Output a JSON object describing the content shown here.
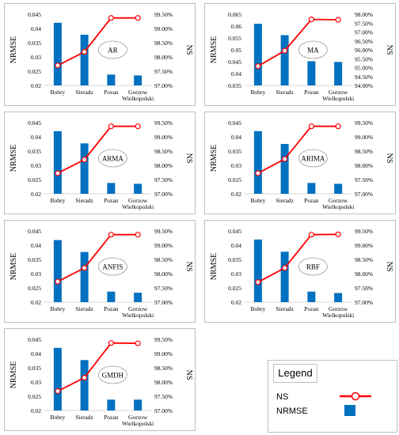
{
  "legend": {
    "title": "Legend",
    "ns_label": "NS",
    "nrmse_label": "NRMSE"
  },
  "colors": {
    "bar": "#0070C0",
    "line": "#FF0000",
    "marker_fill": "#FFFFFF"
  },
  "chart_data": [
    {
      "type": "bar",
      "model": "AR",
      "categories": [
        "Bobry",
        "Sieradz",
        "Pozan",
        "Gorzow|Wielkopolski"
      ],
      "ylabel": "NRMSE",
      "y2label": "NS",
      "ylim": [
        0.02,
        0.045
      ],
      "yticks": [
        "0.045",
        "0.04",
        "0.035",
        "0.03",
        "0.025",
        "0.02"
      ],
      "y2lim": [
        97.0,
        99.5
      ],
      "y2ticks": [
        "99.50%",
        "99.00%",
        "98.50%",
        "98.00%",
        "97.50%",
        "97.00%"
      ],
      "series": [
        {
          "name": "NRMSE",
          "kind": "bar",
          "values": [
            0.042,
            0.0378,
            0.0238,
            0.0235
          ]
        },
        {
          "name": "NS",
          "kind": "line",
          "values": [
            97.7,
            98.18,
            99.37,
            99.37
          ]
        }
      ]
    },
    {
      "type": "bar",
      "model": "MA",
      "categories": [
        "Bobry",
        "Sieradz",
        "Pozan",
        "Gorzow|Wielkopolski"
      ],
      "ylabel": "NRMSE",
      "y2label": "NS",
      "ylim": [
        0.035,
        0.065
      ],
      "yticks": [
        "0.065",
        "0.06",
        "0.055",
        "0.05",
        "0.045",
        "0.04",
        "0.035"
      ],
      "y2lim": [
        94.0,
        98.0
      ],
      "y2ticks": [
        "98.00%",
        "97.50%",
        "97.00%",
        "96.50%",
        "96.00%",
        "95.50%",
        "95.00%",
        "94.50%",
        "94.00%"
      ],
      "series": [
        {
          "name": "NRMSE",
          "kind": "bar",
          "values": [
            0.061,
            0.0562,
            0.0452,
            0.0449
          ]
        },
        {
          "name": "NS",
          "kind": "line",
          "values": [
            95.08,
            95.95,
            97.71,
            97.69
          ]
        }
      ]
    },
    {
      "type": "bar",
      "model": "ARMA",
      "categories": [
        "Bobry",
        "Sieradz",
        "Pozan",
        "Gorzow|Wielkopolski"
      ],
      "ylabel": "NRMSE",
      "y2label": "NS",
      "ylim": [
        0.02,
        0.045
      ],
      "yticks": [
        "0.045",
        "0.04",
        "0.035",
        "0.03",
        "0.025",
        "0.02"
      ],
      "y2lim": [
        97.0,
        99.5
      ],
      "y2ticks": [
        "99.50%",
        "99.00%",
        "98.50%",
        "98.00%",
        "97.50%",
        "97.00%"
      ],
      "series": [
        {
          "name": "NRMSE",
          "kind": "bar",
          "values": [
            0.042,
            0.0377,
            0.0238,
            0.0235
          ]
        },
        {
          "name": "NS",
          "kind": "line",
          "values": [
            97.72,
            98.2,
            99.37,
            99.37
          ]
        }
      ]
    },
    {
      "type": "bar",
      "model": "ARIMA",
      "categories": [
        "Bobry",
        "Sieradz",
        "Pozan",
        "Gorzow|Wielkopolski"
      ],
      "ylabel": "NRMSE",
      "y2label": "NS",
      "ylim": [
        0.02,
        0.045
      ],
      "yticks": [
        "0.045",
        "0.04",
        "0.035",
        "0.03",
        "0.025",
        "0.02"
      ],
      "y2lim": [
        97.0,
        99.5
      ],
      "y2ticks": [
        "99.50%",
        "99.00%",
        "98.50%",
        "98.00%",
        "97.50%",
        "97.00%"
      ],
      "series": [
        {
          "name": "NRMSE",
          "kind": "bar",
          "values": [
            0.042,
            0.0375,
            0.0238,
            0.0235
          ]
        },
        {
          "name": "NS",
          "kind": "line",
          "values": [
            97.72,
            98.22,
            99.37,
            99.37
          ]
        }
      ]
    },
    {
      "type": "bar",
      "model": "ANFIS",
      "categories": [
        "Bobry",
        "Sieradz",
        "Pozan",
        "Gorzow|Wielkopolski"
      ],
      "ylabel": "NRMSE",
      "y2label": "NS",
      "ylim": [
        0.02,
        0.045
      ],
      "yticks": [
        "0.045",
        "0.04",
        "0.035",
        "0.03",
        "0.025",
        "0.02"
      ],
      "y2lim": [
        97.0,
        99.5
      ],
      "y2ticks": [
        "99.50%",
        "99.00%",
        "98.50%",
        "98.00%",
        "97.50%",
        "97.00%"
      ],
      "series": [
        {
          "name": "NRMSE",
          "kind": "bar",
          "values": [
            0.0418,
            0.0376,
            0.0237,
            0.0233
          ]
        },
        {
          "name": "NS",
          "kind": "line",
          "values": [
            97.72,
            98.2,
            99.37,
            99.37
          ]
        }
      ]
    },
    {
      "type": "bar",
      "model": "RBF",
      "categories": [
        "Bobry",
        "Sieradz",
        "Pozan",
        "Gorzow|Wielkopolski"
      ],
      "ylabel": "NRMSE",
      "y2label": "NS",
      "ylim": [
        0.02,
        0.045
      ],
      "yticks": [
        "0.045",
        "0.04",
        "0.035",
        "0.03",
        "0.025",
        "0.02"
      ],
      "y2lim": [
        97.0,
        99.5
      ],
      "y2ticks": [
        "99.50%",
        "99.00%",
        "98.50%",
        "98.00%",
        "97.50%",
        "97.00%"
      ],
      "series": [
        {
          "name": "NRMSE",
          "kind": "bar",
          "values": [
            0.042,
            0.0377,
            0.0237,
            0.0232
          ]
        },
        {
          "name": "NS",
          "kind": "line",
          "values": [
            97.7,
            98.2,
            99.37,
            99.38
          ]
        }
      ]
    },
    {
      "type": "bar",
      "model": "GMDH",
      "categories": [
        "Bobry",
        "Sieradz",
        "Pozan",
        "Gorzow|Wielkopolski"
      ],
      "ylabel": "NRMSE",
      "y2label": "NS",
      "ylim": [
        0.02,
        0.045
      ],
      "yticks": [
        "0.045",
        "0.04",
        "0.035",
        "0.03",
        "0.025",
        "0.02"
      ],
      "y2lim": [
        97.0,
        99.5
      ],
      "y2ticks": [
        "99.50%",
        "99.00%",
        "98.50%",
        "98.00%",
        "97.50%",
        "97.00%"
      ],
      "series": [
        {
          "name": "NRMSE",
          "kind": "bar",
          "values": [
            0.042,
            0.0377,
            0.0238,
            0.0238
          ]
        },
        {
          "name": "NS",
          "kind": "line",
          "values": [
            97.68,
            98.15,
            99.37,
            99.36
          ]
        }
      ]
    }
  ]
}
